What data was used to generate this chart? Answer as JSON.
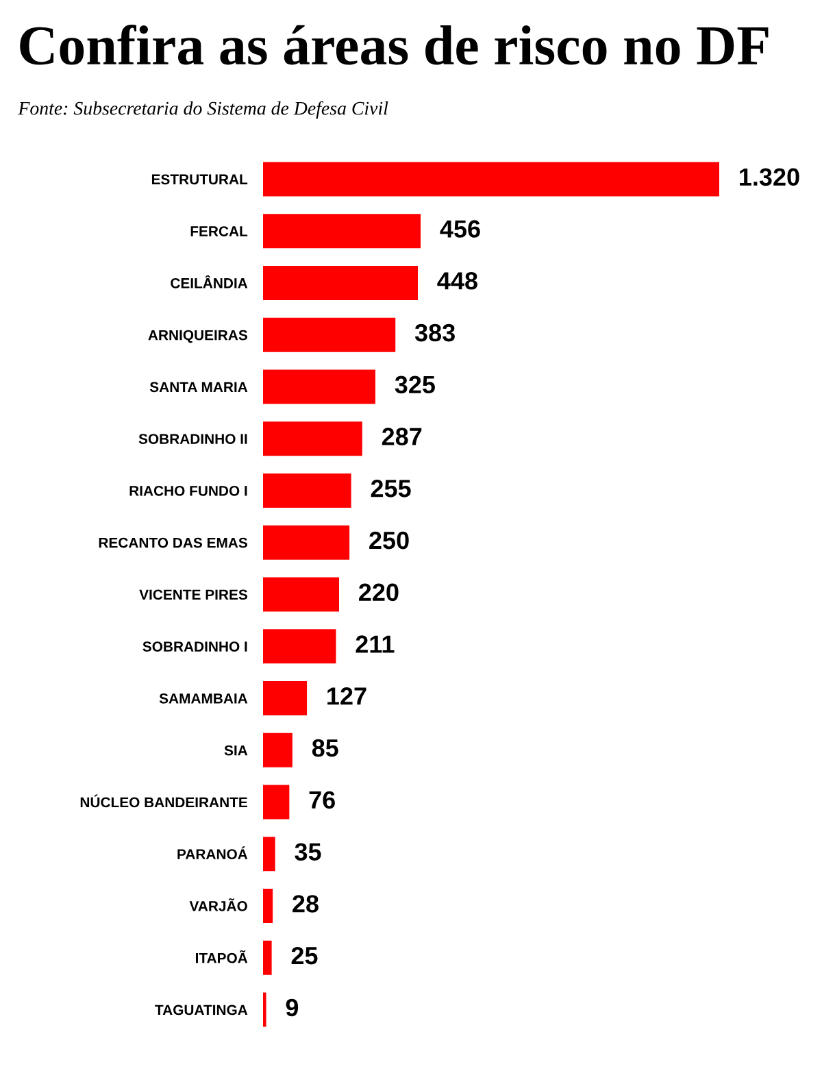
{
  "chart_data": {
    "type": "bar",
    "orientation": "horizontal",
    "title": "Confira as áreas de risco no DF",
    "subtitle": "Fonte: Subsecretaria do Sistema de Defesa Civil",
    "categories": [
      "ESTRUTURAL",
      "FERCAL",
      "CEILÂNDIA",
      "ARNIQUEIRAS",
      "SANTA MARIA",
      "SOBRADINHO II",
      "RIACHO FUNDO I",
      "RECANTO DAS EMAS",
      "VICENTE PIRES",
      "SOBRADINHO I",
      "SAMAMBAIA",
      "SIA",
      "NÚCLEO BANDEIRANTE",
      "PARANOÁ",
      "VARJÃO",
      "ITAPOÃ",
      "TAGUATINGA"
    ],
    "values": [
      1320,
      456,
      448,
      383,
      325,
      287,
      255,
      250,
      220,
      211,
      127,
      85,
      76,
      35,
      28,
      25,
      9
    ],
    "value_labels": [
      "1.320",
      "456",
      "448",
      "383",
      "325",
      "287",
      "255",
      "250",
      "220",
      "211",
      "127",
      "85",
      "76",
      "35",
      "28",
      "25",
      "9"
    ],
    "color": "#ff0000",
    "grid": false,
    "legend": false,
    "tick_labels": "y"
  }
}
